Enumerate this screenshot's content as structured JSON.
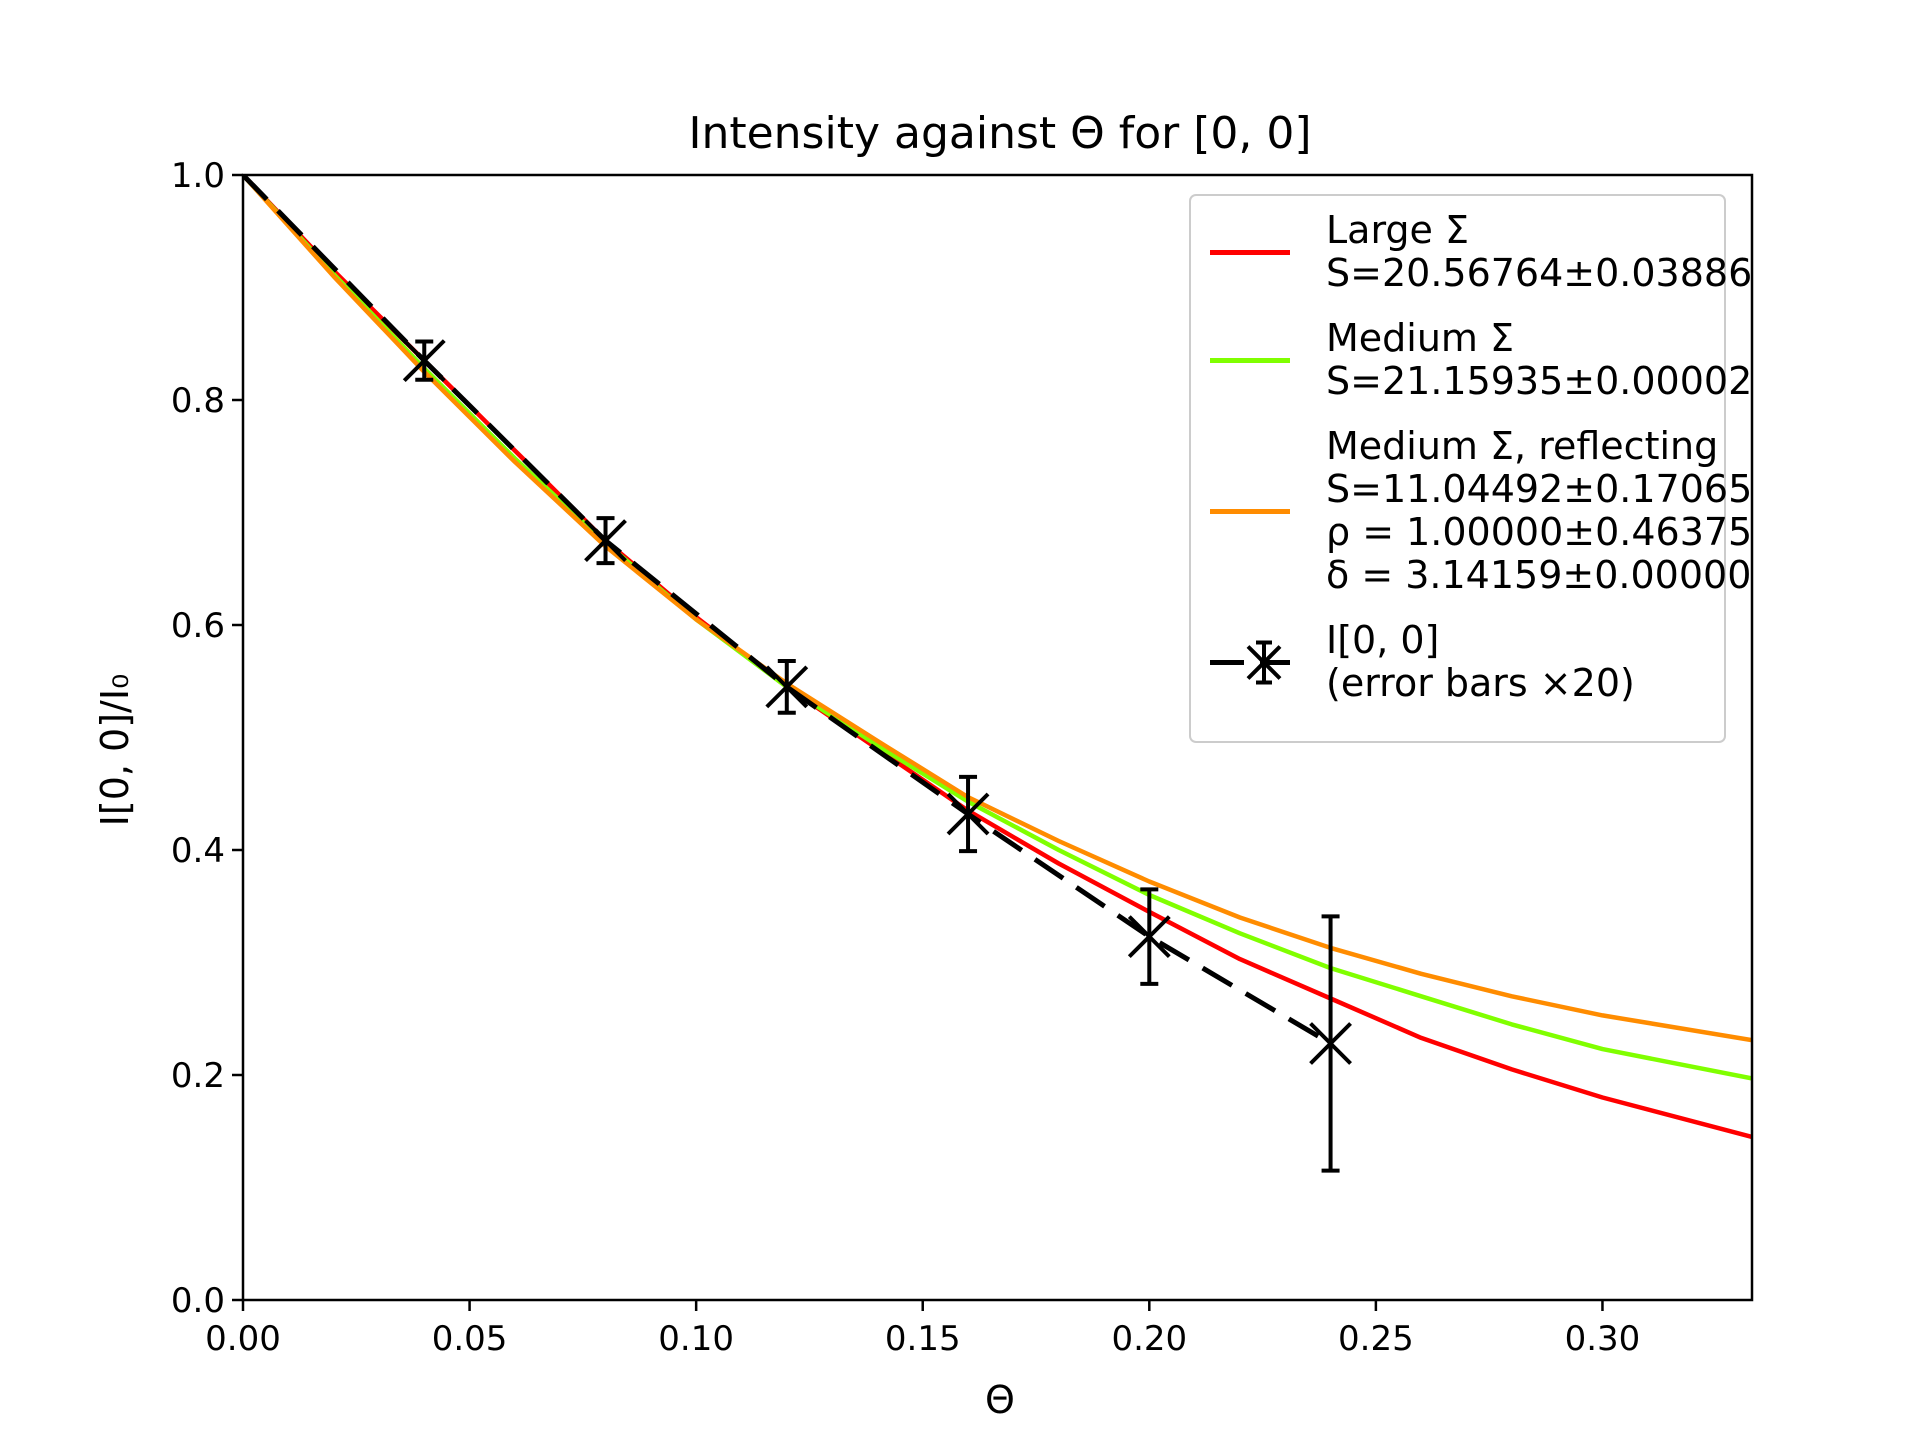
{
  "chart_data": {
    "type": "line",
    "title": "Intensity against Θ for [0, 0]",
    "xlabel": "Θ",
    "ylabel": "I[0, 0]/I₀",
    "xlim": [
      0,
      0.333
    ],
    "ylim": [
      0,
      1
    ],
    "xticks": [
      "0.00",
      "0.05",
      "0.10",
      "0.15",
      "0.20",
      "0.25",
      "0.30"
    ],
    "yticks": [
      "0.0",
      "0.2",
      "0.4",
      "0.6",
      "0.8",
      "1.0"
    ],
    "grid": false,
    "legend_position": "top-right",
    "series": [
      {
        "name": "Large Σ",
        "legend_lines": [
          "Large Σ",
          "S=20.56764±0.03886"
        ],
        "color": "#ff0000",
        "x": [
          0,
          0.02,
          0.04,
          0.06,
          0.08,
          0.1,
          0.12,
          0.14,
          0.16,
          0.18,
          0.2,
          0.22,
          0.24,
          0.26,
          0.28,
          0.3,
          0.333
        ],
        "y": [
          1.0,
          0.915,
          0.835,
          0.755,
          0.675,
          0.607,
          0.545,
          0.49,
          0.435,
          0.388,
          0.345,
          0.303,
          0.268,
          0.233,
          0.205,
          0.18,
          0.145
        ]
      },
      {
        "name": "Medium Σ",
        "legend_lines": [
          "Medium Σ",
          "S=21.15935±0.00002"
        ],
        "color": "#80ff00",
        "x": [
          0,
          0.02,
          0.04,
          0.06,
          0.08,
          0.1,
          0.12,
          0.14,
          0.16,
          0.18,
          0.2,
          0.22,
          0.24,
          0.26,
          0.28,
          0.3,
          0.333
        ],
        "y": [
          1.0,
          0.912,
          0.828,
          0.748,
          0.673,
          0.605,
          0.545,
          0.493,
          0.443,
          0.4,
          0.36,
          0.326,
          0.295,
          0.27,
          0.245,
          0.223,
          0.197
        ]
      },
      {
        "name": "Medium Σ, reflecting",
        "legend_lines": [
          "Medium Σ, reflecting",
          "S=11.04492±0.17065",
          "ρ = 1.00000±0.46375",
          "δ = 3.14159±0.00000"
        ],
        "color": "#ff8c00",
        "x": [
          0,
          0.02,
          0.04,
          0.06,
          0.08,
          0.1,
          0.12,
          0.14,
          0.16,
          0.18,
          0.2,
          0.22,
          0.24,
          0.26,
          0.28,
          0.3,
          0.333
        ],
        "y": [
          1.0,
          0.91,
          0.825,
          0.745,
          0.67,
          0.605,
          0.548,
          0.497,
          0.447,
          0.408,
          0.372,
          0.34,
          0.313,
          0.29,
          0.27,
          0.253,
          0.231
        ]
      },
      {
        "name": "I[0, 0]",
        "legend_lines": [
          "I[0, 0]",
          "(error bars ×20)"
        ],
        "color": "#000000",
        "style": "dashed-with-x-markers",
        "x": [
          0.0,
          0.04,
          0.08,
          0.12,
          0.16,
          0.2,
          0.24
        ],
        "y": [
          1.0,
          0.835,
          0.675,
          0.545,
          0.432,
          0.323,
          0.228
        ],
        "error": [
          0.0,
          0.017,
          0.02,
          0.023,
          0.033,
          0.042,
          0.113
        ]
      }
    ]
  }
}
